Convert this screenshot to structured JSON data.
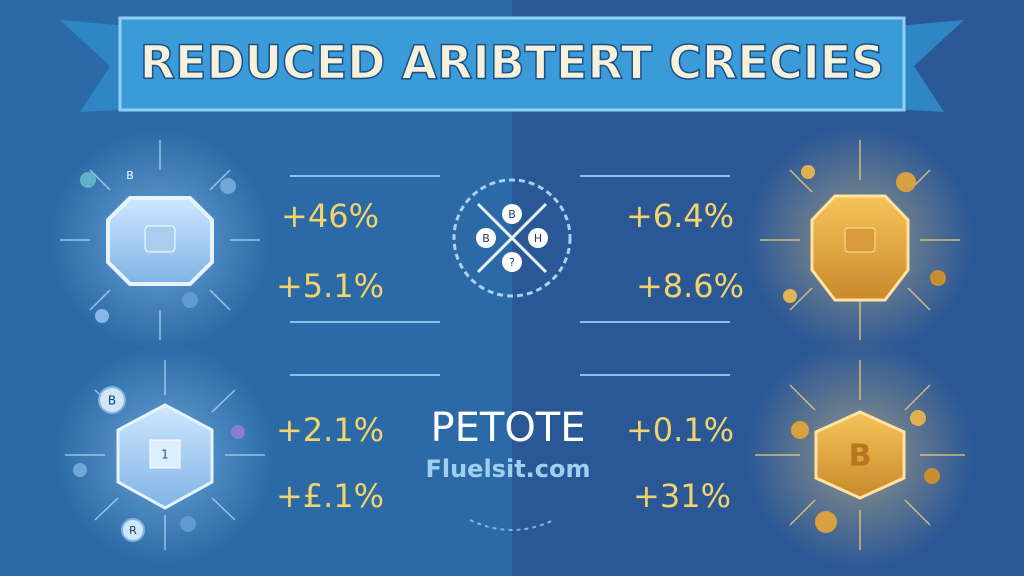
{
  "header": {
    "title": "REDUCED ARIBTERT CRECIES"
  },
  "panels": [
    {
      "values": [
        "+46%",
        "+5.1%"
      ]
    },
    {
      "values": [
        "+6.4%",
        "+8.6%"
      ]
    },
    {
      "values": [
        "+2.1%",
        "+£.1%"
      ]
    },
    {
      "values": [
        "+0.1%",
        "+31%"
      ]
    }
  ],
  "center": {
    "diagram_labels": [
      "B",
      "B",
      "H",
      "?"
    ],
    "brand": "PETOTE",
    "url": "Fluelsit.com"
  },
  "icons": {
    "top_left": "B",
    "bottom_left_badge": "B",
    "bottom_left_face": "1",
    "bottom_left_small": "R",
    "bottom_right_coin": "B"
  }
}
